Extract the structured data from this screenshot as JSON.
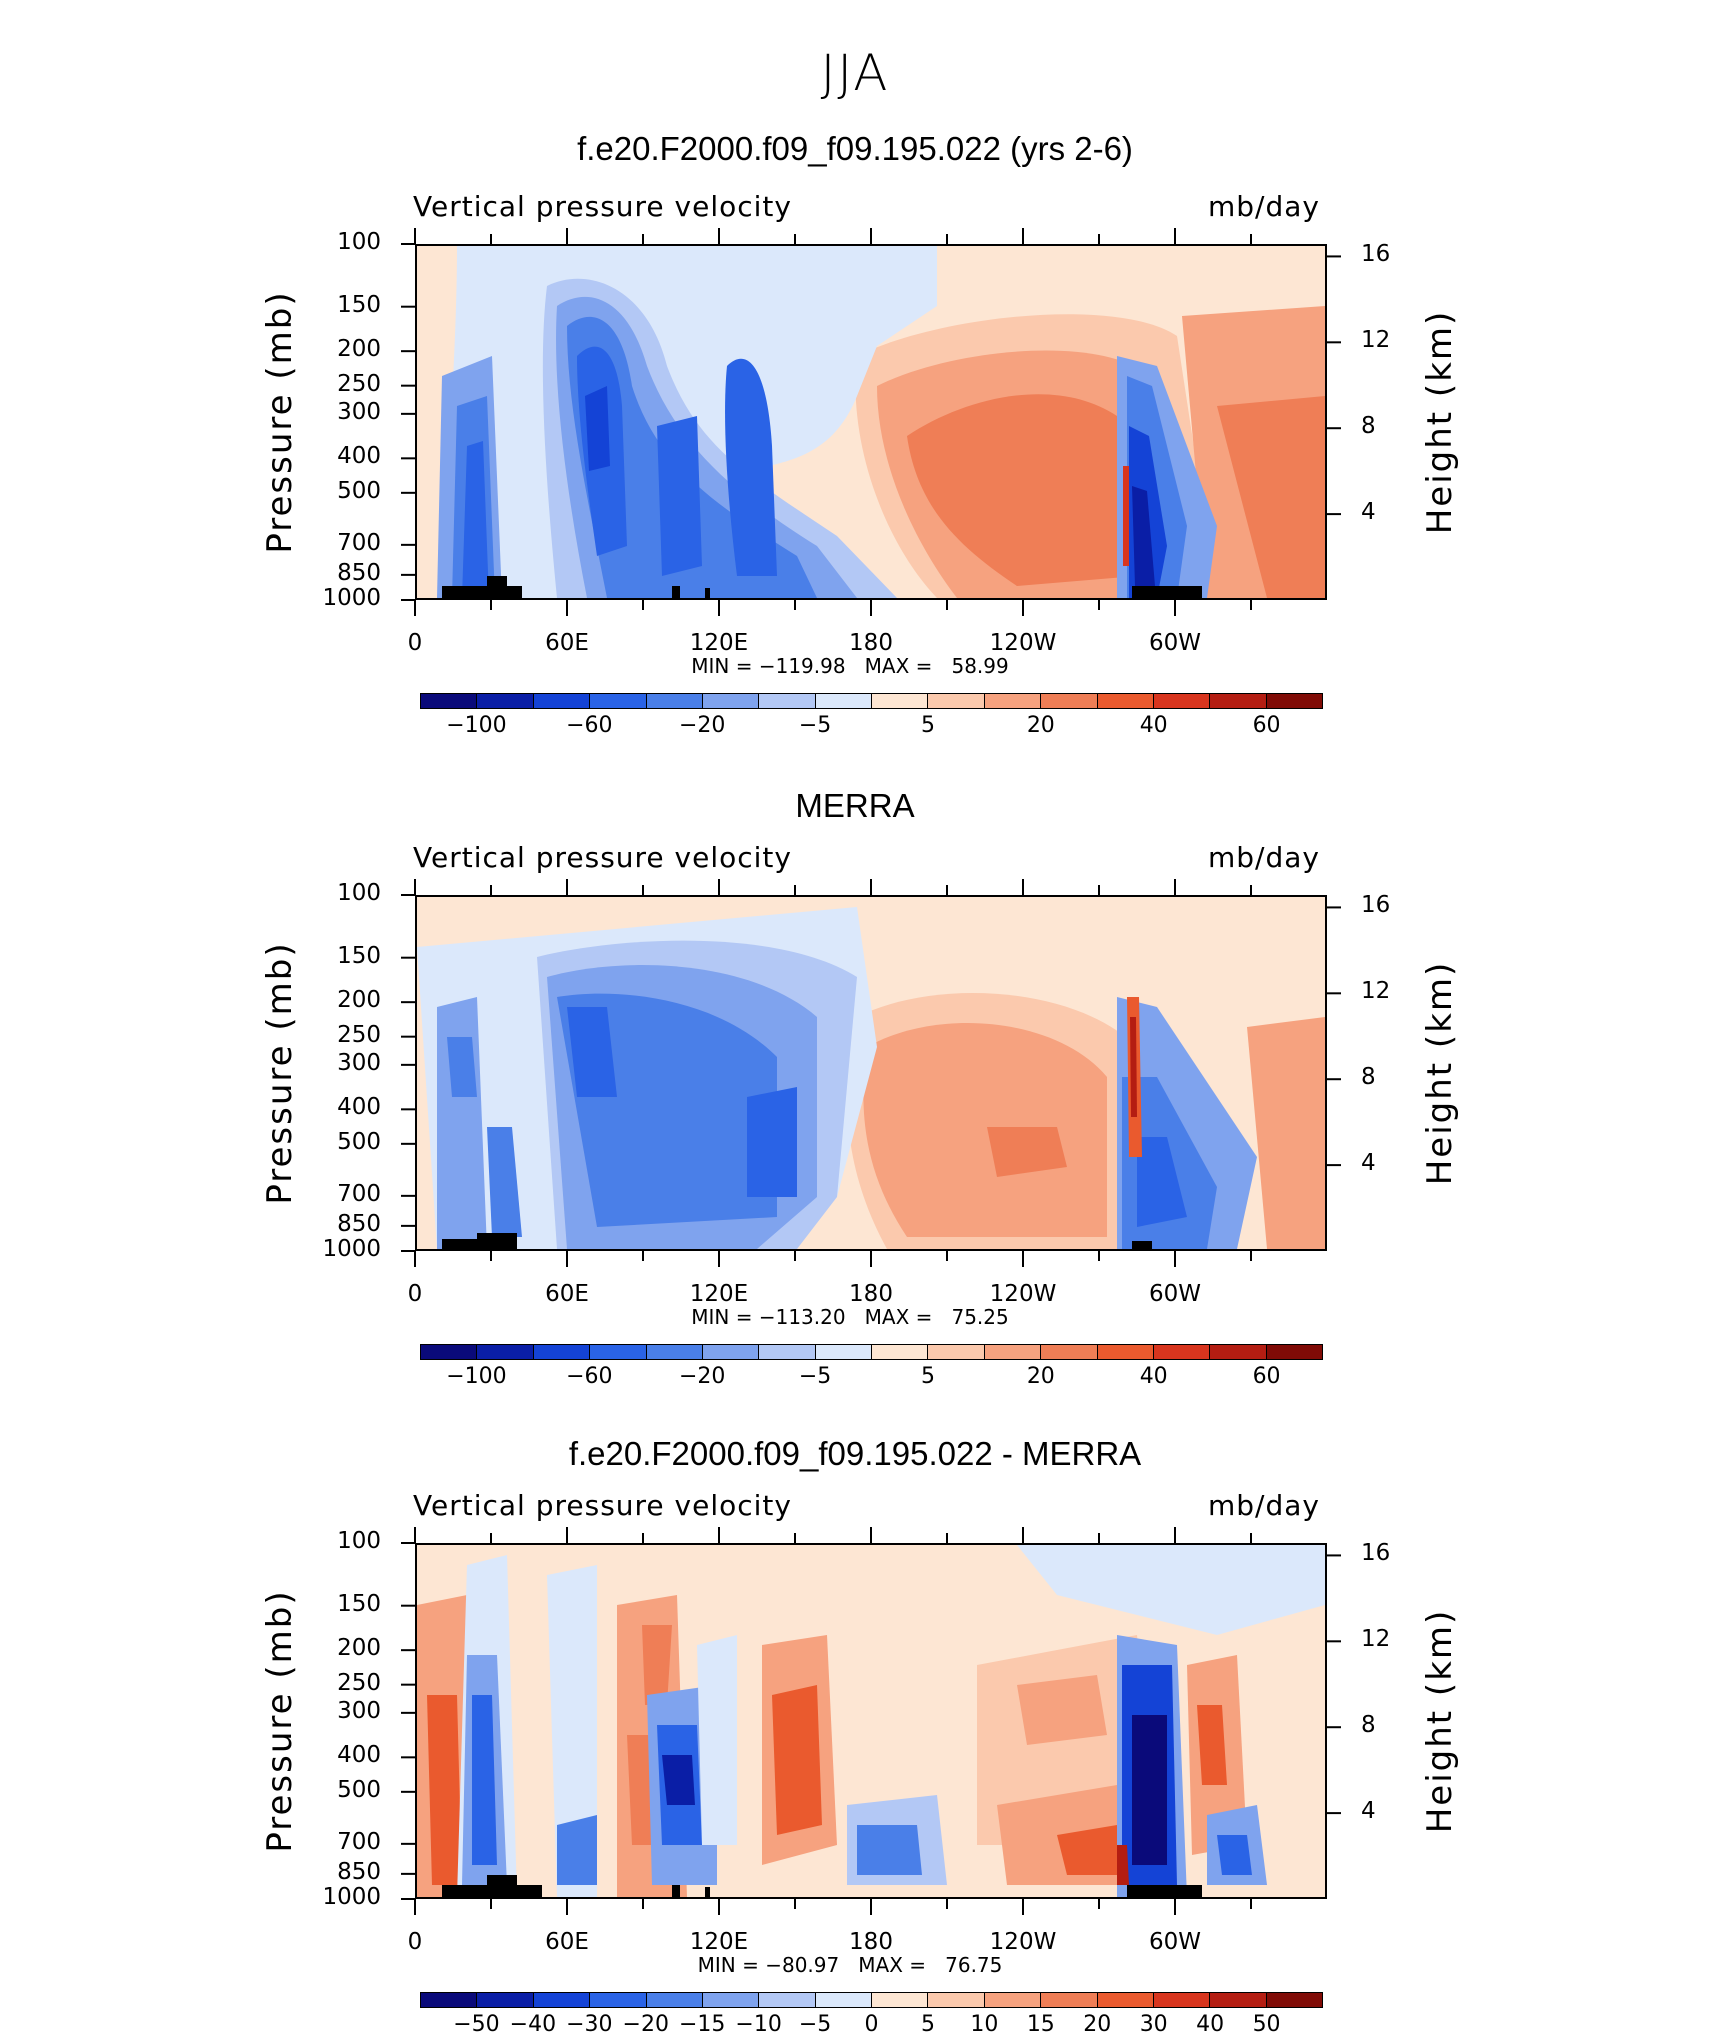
{
  "figure_title": "JJA",
  "colors": {
    "abs_scale": [
      "#0a0a7a",
      "#0a1ea6",
      "#1443d6",
      "#2a63e6",
      "#4a7fe8",
      "#7fa3ee",
      "#b3c8f5",
      "#dbe8fb",
      "#fde6d3",
      "#fbc9ad",
      "#f6a27f",
      "#ef7e56",
      "#ea5a2e",
      "#d8351e",
      "#b41d12",
      "#800b06"
    ],
    "diff_scale": [
      "#0a0a7a",
      "#0a1ea6",
      "#1443d6",
      "#2a63e6",
      "#4a7fe8",
      "#7fa3ee",
      "#b3c8f5",
      "#dbe8fb",
      "#fde6d3",
      "#fbc9ad",
      "#f6a27f",
      "#ef7e56",
      "#ea5a2e",
      "#d8351e",
      "#b41d12",
      "#800b06"
    ]
  },
  "panels": [
    {
      "id": "model",
      "title": "f.e20.F2000.f09_f09.195.022 (yrs 2-6)",
      "var_name": "Vertical pressure velocity",
      "units": "mb/day",
      "min_max": "MIN = −119.98   MAX =   58.99",
      "cbar_labels": [
        "−100",
        "−60",
        "−20",
        "−5",
        "5",
        "20",
        "40",
        "60"
      ]
    },
    {
      "id": "obs",
      "title": "MERRA",
      "var_name": "Vertical pressure velocity",
      "units": "mb/day",
      "min_max": "MIN = −113.20   MAX =   75.25",
      "cbar_labels": [
        "−100",
        "−60",
        "−20",
        "−5",
        "5",
        "20",
        "40",
        "60"
      ]
    },
    {
      "id": "diff",
      "title": "f.e20.F2000.f09_f09.195.022 - MERRA",
      "var_name": "Vertical pressure velocity",
      "units": "mb/day",
      "min_max": "MIN = −80.97   MAX =   76.75",
      "cbar_labels": [
        "−50",
        "−40",
        "−30",
        "−20",
        "−15",
        "−10",
        "−5",
        "0",
        "5",
        "10",
        "15",
        "20",
        "30",
        "40",
        "50"
      ]
    }
  ],
  "axes": {
    "y_left_label": "Pressure (mb)",
    "y_left_ticks": [
      "100",
      "150",
      "200",
      "250",
      "300",
      "400",
      "500",
      "700",
      "850",
      "1000"
    ],
    "y_right_label": "Height (km)",
    "y_right_ticks": [
      "16",
      "12",
      "8",
      "4"
    ],
    "x_ticks": [
      "0",
      "60E",
      "120E",
      "180",
      "120W",
      "60W"
    ]
  },
  "chart_data": [
    {
      "type": "heatmap",
      "title": "f.e20.F2000.f09_f09.195.022 (yrs 2-6)",
      "subtitle": "Vertical pressure velocity",
      "units": "mb/day",
      "xlabel": "",
      "ylabel": "Pressure (mb)",
      "y2label": "Height (km)",
      "x_ticks": [
        "0",
        "60E",
        "120E",
        "180",
        "120W",
        "60W"
      ],
      "ylim": [
        1000,
        100
      ],
      "y_log": true,
      "min": -119.98,
      "max": 58.99,
      "contour_levels": [
        -100,
        -80,
        -60,
        -40,
        -20,
        -10,
        -5,
        0,
        5,
        10,
        20,
        30,
        40,
        50,
        60
      ],
      "regions": [
        {
          "lon_range": [
            15,
            45
          ],
          "p_range": [
            1000,
            200
          ],
          "sign": "ascent",
          "peak": -60
        },
        {
          "lon_range": [
            35,
            50
          ],
          "p_range": [
            850,
            250
          ],
          "sign": "descent",
          "peak": 30
        },
        {
          "lon_range": [
            55,
            80
          ],
          "p_range": [
            1000,
            150
          ],
          "sign": "ascent",
          "peak": -80
        },
        {
          "lon_range": [
            95,
            180
          ],
          "p_range": [
            1000,
            200
          ],
          "sign": "ascent",
          "peak": -60
        },
        {
          "lon_range": [
            180,
            270
          ],
          "p_range": [
            1000,
            200
          ],
          "sign": "descent",
          "peak": 40
        },
        {
          "lon_range": [
            275,
            300
          ],
          "p_range": [
            1000,
            250
          ],
          "sign": "ascent",
          "peak": -120
        },
        {
          "lon_range": [
            300,
            360
          ],
          "p_range": [
            1000,
            200
          ],
          "sign": "descent",
          "peak": 30
        }
      ]
    },
    {
      "type": "heatmap",
      "title": "MERRA",
      "subtitle": "Vertical pressure velocity",
      "units": "mb/day",
      "xlabel": "",
      "ylabel": "Pressure (mb)",
      "y2label": "Height (km)",
      "x_ticks": [
        "0",
        "60E",
        "120E",
        "180",
        "120W",
        "60W"
      ],
      "ylim": [
        1000,
        100
      ],
      "y_log": true,
      "min": -113.2,
      "max": 75.25,
      "contour_levels": [
        -100,
        -80,
        -60,
        -40,
        -20,
        -10,
        -5,
        0,
        5,
        10,
        20,
        30,
        40,
        50,
        60
      ],
      "regions": [
        {
          "lon_range": [
            10,
            35
          ],
          "p_range": [
            1000,
            200
          ],
          "sign": "ascent",
          "peak": -40
        },
        {
          "lon_range": [
            30,
            60
          ],
          "p_range": [
            1000,
            300
          ],
          "sign": "descent",
          "peak": 40
        },
        {
          "lon_range": [
            50,
            130
          ],
          "p_range": [
            1000,
            150
          ],
          "sign": "ascent",
          "peak": -60
        },
        {
          "lon_range": [
            120,
            180
          ],
          "p_range": [
            1000,
            150
          ],
          "sign": "ascent",
          "peak": -60
        },
        {
          "lon_range": [
            180,
            275
          ],
          "p_range": [
            1000,
            200
          ],
          "sign": "descent",
          "peak": 40
        },
        {
          "lon_range": [
            278,
            285
          ],
          "p_range": [
            700,
            200
          ],
          "sign": "descent",
          "peak": 75
        },
        {
          "lon_range": [
            280,
            320
          ],
          "p_range": [
            1000,
            400
          ],
          "sign": "ascent",
          "peak": -60
        },
        {
          "lon_range": [
            330,
            360
          ],
          "p_range": [
            1000,
            300
          ],
          "sign": "descent",
          "peak": 20
        }
      ]
    },
    {
      "type": "heatmap",
      "title": "f.e20.F2000.f09_f09.195.022 - MERRA",
      "subtitle": "Vertical pressure velocity",
      "units": "mb/day",
      "xlabel": "",
      "ylabel": "Pressure (mb)",
      "y2label": "Height (km)",
      "x_ticks": [
        "0",
        "60E",
        "120E",
        "180",
        "120W",
        "60W"
      ],
      "ylim": [
        1000,
        100
      ],
      "y_log": true,
      "min": -80.97,
      "max": 76.75,
      "contour_levels": [
        -50,
        -40,
        -30,
        -20,
        -15,
        -10,
        -5,
        0,
        5,
        10,
        15,
        20,
        30,
        40,
        50
      ],
      "regions": [
        {
          "lon_range": [
            10,
            25
          ],
          "p_range": [
            1000,
            200
          ],
          "sign": "positive",
          "peak": 30
        },
        {
          "lon_range": [
            22,
            38
          ],
          "p_range": [
            1000,
            250
          ],
          "sign": "negative",
          "peak": -40
        },
        {
          "lon_range": [
            80,
            100
          ],
          "p_range": [
            1000,
            150
          ],
          "sign": "positive",
          "peak": 30
        },
        {
          "lon_range": [
            95,
            120
          ],
          "p_range": [
            1000,
            200
          ],
          "sign": "negative",
          "peak": -50
        },
        {
          "lon_range": [
            135,
            160
          ],
          "p_range": [
            1000,
            200
          ],
          "sign": "positive",
          "peak": 40
        },
        {
          "lon_range": [
            165,
            190
          ],
          "p_range": [
            1000,
            600
          ],
          "sign": "negative",
          "peak": -30
        },
        {
          "lon_range": [
            280,
            300
          ],
          "p_range": [
            1000,
            250
          ],
          "sign": "negative",
          "peak": -80
        },
        {
          "lon_range": [
            300,
            320
          ],
          "p_range": [
            1000,
            200
          ],
          "sign": "positive",
          "peak": 40
        },
        {
          "lon_range": [
            320,
            335
          ],
          "p_range": [
            1000,
            700
          ],
          "sign": "negative",
          "peak": -30
        }
      ]
    }
  ]
}
